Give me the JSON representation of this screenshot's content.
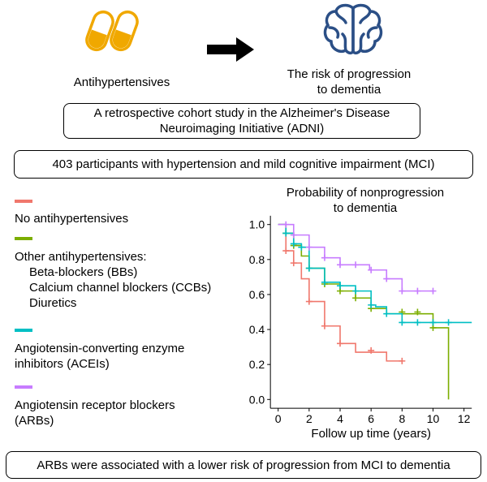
{
  "header": {
    "drug_label": "Antihypertensives",
    "outcome_label_line1": "The risk of progression",
    "outcome_label_line2": "to dementia",
    "icons": {
      "drug": "capsule-pills-icon",
      "arrow": "right-arrow-icon",
      "outcome": "brain-icon"
    },
    "colors": {
      "pills": "#f0a800",
      "brain": "#2b4f86"
    }
  },
  "study_box": {
    "line1": "A retrospective cohort study in the Alzheimer's Disease",
    "line2": "Neuroimaging Initiative (ADNI)"
  },
  "participants_box": {
    "text": "403 participants with hypertension and mild cognitive impairment (MCI)"
  },
  "legend": [
    {
      "label": "No antihypertensives",
      "sub": [],
      "color": "#f0776c"
    },
    {
      "label": "Other antihypertensives:",
      "sub": [
        "Beta-blockers (BBs)",
        "Calcium channel blockers (CCBs)",
        "Diuretics"
      ],
      "color": "#7cae00"
    },
    {
      "label": "Angiotensin-converting enzyme",
      "sub2": "inhibitors (ACEIs)",
      "sub": [],
      "color": "#00bfc4"
    },
    {
      "label": "Angiotensin receptor blockers",
      "sub2": "(ARBs)",
      "sub": [],
      "color": "#c77cff"
    }
  ],
  "conclusion_box": {
    "text": "ARBs were associated with a lower risk of progression from MCI to dementia"
  },
  "chart_data": {
    "type": "line",
    "subtype": "kaplan-meier step",
    "title_line1": "Probability of nonprogression",
    "title_line2": "to dementia",
    "xlabel": "Follow up time (years)",
    "ylabel": "",
    "xlim": [
      -0.5,
      12.5
    ],
    "ylim": [
      -0.05,
      1.05
    ],
    "xticks": [
      "0",
      "2",
      "4",
      "6",
      "8",
      "10",
      "12"
    ],
    "yticks": [
      "0.0",
      "0.2",
      "0.4",
      "0.6",
      "0.8",
      "1.0"
    ],
    "grid": false,
    "series": [
      {
        "key": "none",
        "color": "#f0776c",
        "steps": [
          [
            0,
            1.0
          ],
          [
            0.5,
            0.85
          ],
          [
            1,
            0.78
          ],
          [
            1.5,
            0.69
          ],
          [
            2,
            0.56
          ],
          [
            3,
            0.42
          ],
          [
            4,
            0.32
          ],
          [
            5,
            0.27
          ],
          [
            7,
            0.22
          ]
        ],
        "end": 8,
        "censors": [
          [
            0.5,
            0.85
          ],
          [
            1,
            0.78
          ],
          [
            2,
            0.56
          ],
          [
            3,
            0.42
          ],
          [
            4,
            0.32
          ],
          [
            6,
            0.28
          ],
          [
            8,
            0.22
          ]
        ]
      },
      {
        "key": "other",
        "color": "#7cae00",
        "steps": [
          [
            0,
            1.0
          ],
          [
            0.5,
            0.95
          ],
          [
            1,
            0.88
          ],
          [
            1.5,
            0.82
          ],
          [
            2,
            0.75
          ],
          [
            3,
            0.66
          ],
          [
            4,
            0.62
          ],
          [
            5,
            0.58
          ],
          [
            6,
            0.52
          ],
          [
            7,
            0.49
          ],
          [
            10,
            0.41
          ],
          [
            11,
            0.0
          ]
        ],
        "end": 11,
        "censors": [
          [
            0.5,
            0.95
          ],
          [
            1,
            0.88
          ],
          [
            2,
            0.75
          ],
          [
            3,
            0.66
          ],
          [
            4,
            0.62
          ],
          [
            5,
            0.58
          ],
          [
            6,
            0.52
          ],
          [
            8,
            0.5
          ],
          [
            9,
            0.5
          ],
          [
            10,
            0.41
          ]
        ]
      },
      {
        "key": "acei",
        "color": "#00bfc4",
        "steps": [
          [
            0,
            1.0
          ],
          [
            0.5,
            0.95
          ],
          [
            1,
            0.89
          ],
          [
            1.5,
            0.87
          ],
          [
            2,
            0.75
          ],
          [
            3,
            0.67
          ],
          [
            4,
            0.65
          ],
          [
            5,
            0.62
          ],
          [
            6,
            0.54
          ],
          [
            6.3,
            0.53
          ],
          [
            7,
            0.49
          ],
          [
            8,
            0.44
          ]
        ],
        "end": 12.5,
        "censors": [
          [
            0.5,
            0.95
          ],
          [
            1,
            0.89
          ],
          [
            1.5,
            0.87
          ],
          [
            2,
            0.75
          ],
          [
            3,
            0.67
          ],
          [
            4,
            0.65
          ],
          [
            5,
            0.62
          ],
          [
            6,
            0.54
          ],
          [
            7,
            0.49
          ],
          [
            8,
            0.44
          ],
          [
            9,
            0.44
          ],
          [
            10,
            0.44
          ],
          [
            11,
            0.44
          ]
        ]
      },
      {
        "key": "arb",
        "color": "#c77cff",
        "steps": [
          [
            0,
            1.0
          ],
          [
            1,
            0.94
          ],
          [
            2,
            0.87
          ],
          [
            3,
            0.81
          ],
          [
            4,
            0.77
          ],
          [
            5.9,
            0.74
          ],
          [
            7,
            0.69
          ],
          [
            8,
            0.62
          ]
        ],
        "end": 10,
        "censors": [
          [
            0.5,
            1.0
          ],
          [
            1,
            0.94
          ],
          [
            2,
            0.87
          ],
          [
            3,
            0.81
          ],
          [
            4,
            0.77
          ],
          [
            5,
            0.77
          ],
          [
            6,
            0.74
          ],
          [
            7,
            0.69
          ],
          [
            8,
            0.62
          ],
          [
            9,
            0.62
          ],
          [
            10,
            0.62
          ]
        ]
      }
    ]
  }
}
